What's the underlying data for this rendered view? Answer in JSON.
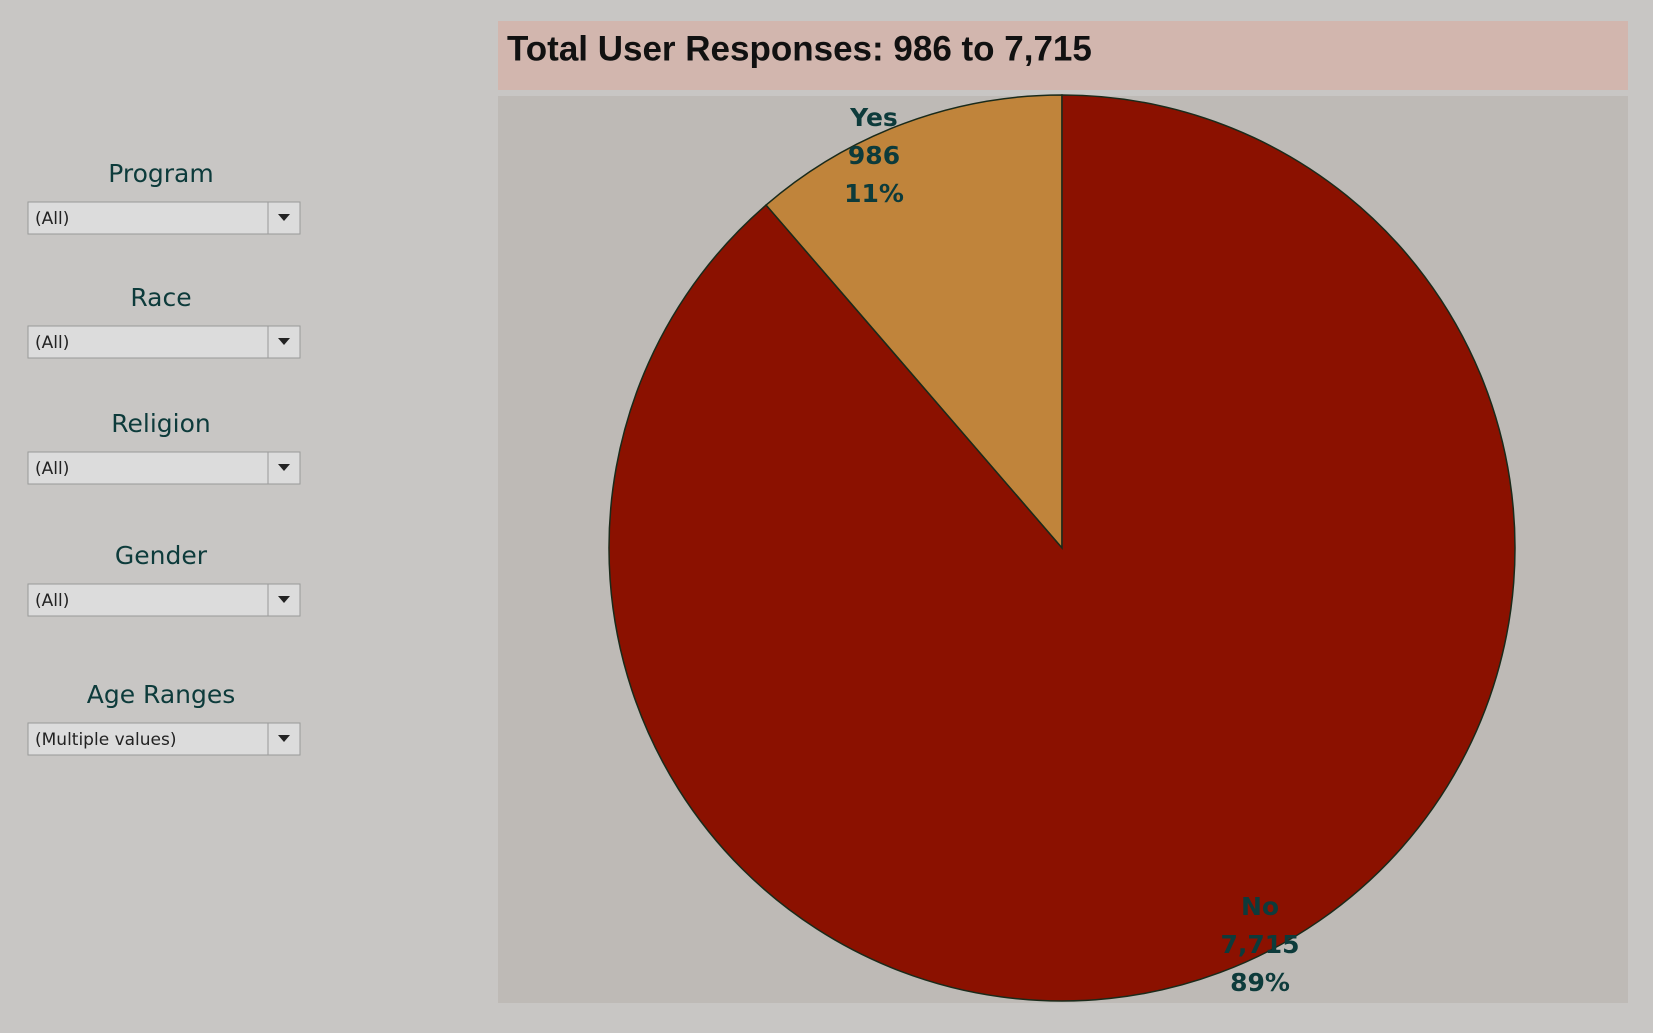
{
  "chart_data": {
    "type": "pie",
    "title": "Total User Responses: 986 to 7,715",
    "categories": [
      "Yes",
      "No"
    ],
    "values": [
      986,
      7715
    ],
    "value_labels": [
      "986",
      "7,715"
    ],
    "percentage_labels": [
      "11%",
      "89%"
    ],
    "colors": [
      "#c0843b",
      "#8b1100"
    ]
  },
  "filters": [
    {
      "label": "Program",
      "value": "(All)"
    },
    {
      "label": "Race",
      "value": "(All)"
    },
    {
      "label": "Religion",
      "value": "(All)"
    },
    {
      "label": "Gender",
      "value": "(All)"
    },
    {
      "label": "Age Ranges",
      "value": "(Multiple values)"
    }
  ]
}
